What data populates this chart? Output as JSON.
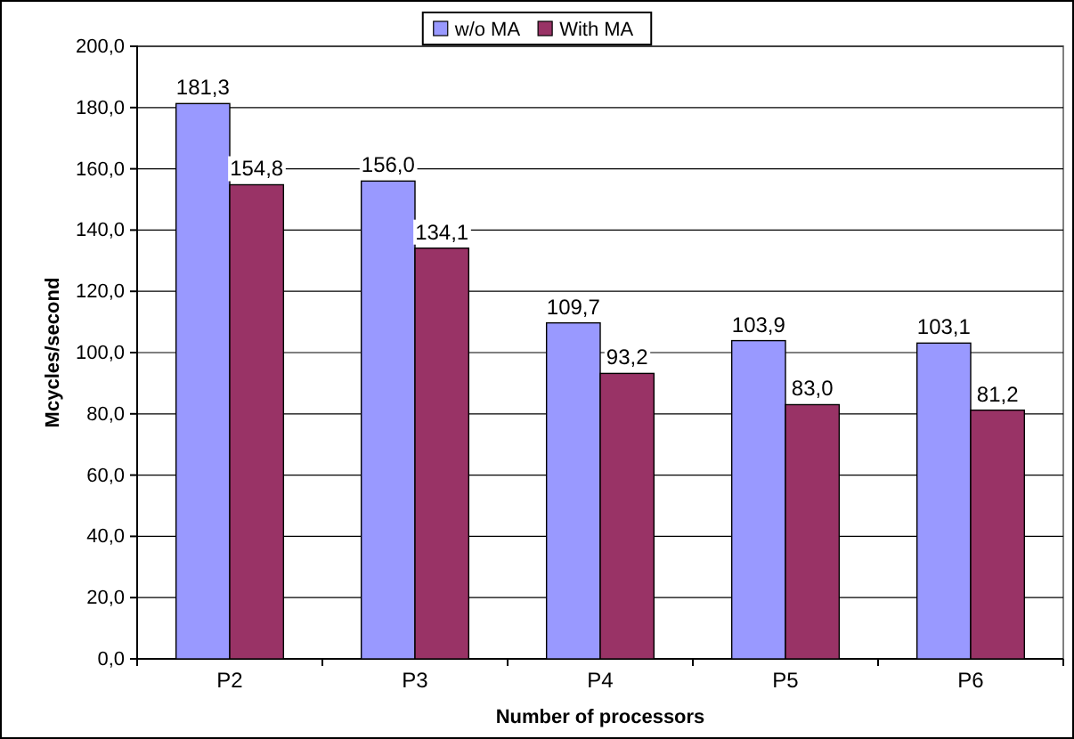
{
  "chart_data": {
    "type": "bar",
    "xlabel": "Number of processors",
    "ylabel": "Mcycles/second",
    "categories": [
      "P2",
      "P3",
      "P4",
      "P5",
      "P6"
    ],
    "series": [
      {
        "name": "w/o MA",
        "color": "#9999ff",
        "values": [
          181.3,
          156.0,
          109.7,
          103.9,
          103.1
        ],
        "value_labels": [
          "181,3",
          "156,0",
          "109,7",
          "103,9",
          "103,1"
        ]
      },
      {
        "name": "With MA",
        "color": "#993366",
        "values": [
          154.8,
          134.1,
          93.2,
          83.0,
          81.2
        ],
        "value_labels": [
          "154,8",
          "134,1",
          "93,2",
          "83,0",
          "81,2"
        ]
      }
    ],
    "ylim": [
      0,
      200
    ],
    "yticks": [
      {
        "value": 0,
        "label": "0,0"
      },
      {
        "value": 20,
        "label": "20,0"
      },
      {
        "value": 40,
        "label": "40,0"
      },
      {
        "value": 60,
        "label": "60,0"
      },
      {
        "value": 80,
        "label": "80,0"
      },
      {
        "value": 100,
        "label": "100,0"
      },
      {
        "value": 120,
        "label": "120,0"
      },
      {
        "value": 140,
        "label": "140,0"
      },
      {
        "value": 160,
        "label": "160,0"
      },
      {
        "value": 180,
        "label": "180,0"
      },
      {
        "value": 200,
        "label": "200,0"
      }
    ],
    "grid": "y",
    "legend": "top"
  }
}
